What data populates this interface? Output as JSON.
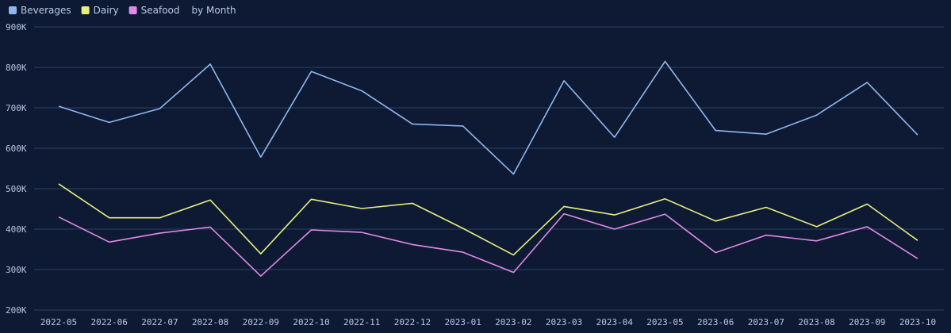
{
  "chart_data": {
    "type": "line",
    "title": "",
    "subtitle": "by Month",
    "xlabel": "",
    "ylabel": "",
    "ylim": [
      200000,
      900000
    ],
    "yticks": [
      200000,
      300000,
      400000,
      500000,
      600000,
      700000,
      800000,
      900000
    ],
    "ytick_labels": [
      "200K",
      "300K",
      "400K",
      "500K",
      "600K",
      "700K",
      "800K",
      "900K"
    ],
    "grid": true,
    "legend_placement": "top-left",
    "categories": [
      "2022-05",
      "2022-06",
      "2022-07",
      "2022-08",
      "2022-09",
      "2022-10",
      "2022-11",
      "2022-12",
      "2023-01",
      "2023-02",
      "2023-03",
      "2023-04",
      "2023-05",
      "2023-06",
      "2023-07",
      "2023-08",
      "2023-09",
      "2023-10"
    ],
    "series": [
      {
        "name": "Beverages",
        "color": "#8fb7ee",
        "values": [
          704000,
          664000,
          698000,
          808000,
          578000,
          790000,
          742000,
          660000,
          655000,
          536000,
          767000,
          627000,
          815000,
          644000,
          635000,
          682000,
          763000,
          633000
        ]
      },
      {
        "name": "Dairy",
        "color": "#e6f07e",
        "values": [
          512000,
          428000,
          428000,
          472000,
          339000,
          474000,
          451000,
          464000,
          402000,
          336000,
          456000,
          435000,
          475000,
          420000,
          454000,
          406000,
          462000,
          372000
        ]
      },
      {
        "name": "Seafood",
        "color": "#e08ae8",
        "values": [
          430000,
          368000,
          390000,
          405000,
          284000,
          398000,
          392000,
          362000,
          343000,
          293000,
          438000,
          400000,
          437000,
          342000,
          385000,
          371000,
          406000,
          327000
        ]
      }
    ]
  }
}
